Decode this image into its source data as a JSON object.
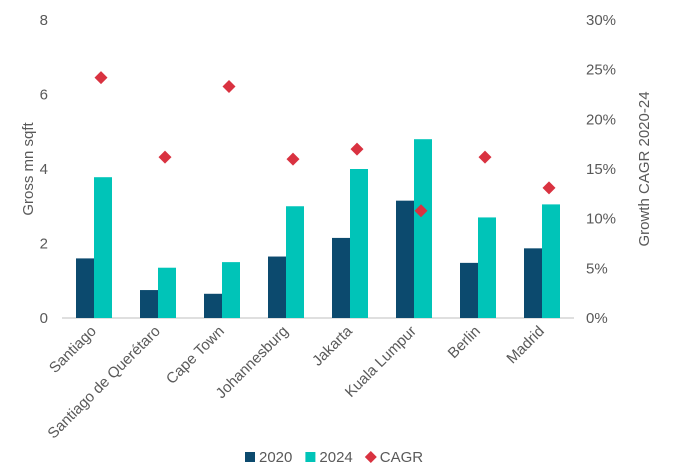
{
  "chart_data": {
    "type": "bar",
    "categories": [
      "Santiago",
      "Santiago de Querétaro",
      "Cape Town",
      "Johannesburg",
      "Jakarta",
      "Kuala Lumpur",
      "Berlin",
      "Madrid"
    ],
    "series": [
      {
        "name": "2020",
        "type": "bar",
        "axis": "left",
        "color": "#0c4a6e",
        "values": [
          1.6,
          0.75,
          0.65,
          1.65,
          2.15,
          3.15,
          1.48,
          1.87
        ]
      },
      {
        "name": "2024",
        "type": "bar",
        "axis": "left",
        "color": "#00c4b8",
        "values": [
          3.78,
          1.35,
          1.5,
          3.0,
          4.0,
          4.8,
          2.7,
          3.05
        ]
      },
      {
        "name": "CAGR",
        "type": "scatter",
        "marker": "diamond",
        "axis": "right",
        "color": "#d93240",
        "values": [
          24.2,
          16.2,
          23.3,
          16.0,
          17.0,
          10.8,
          16.2,
          13.1
        ]
      }
    ],
    "ylabel": "Gross mn sqft",
    "y2label": "Growth CAGR 2020-24",
    "ylim": [
      0,
      8
    ],
    "yticks": [
      "0",
      "2",
      "4",
      "6",
      "8"
    ],
    "y2lim": [
      0,
      30
    ],
    "y2ticks": [
      "0%",
      "5%",
      "10%",
      "15%",
      "20%",
      "25%",
      "30%"
    ],
    "grid": false,
    "legend": {
      "position": "bottom",
      "labels": [
        "2020",
        "2024",
        "CAGR"
      ]
    }
  }
}
